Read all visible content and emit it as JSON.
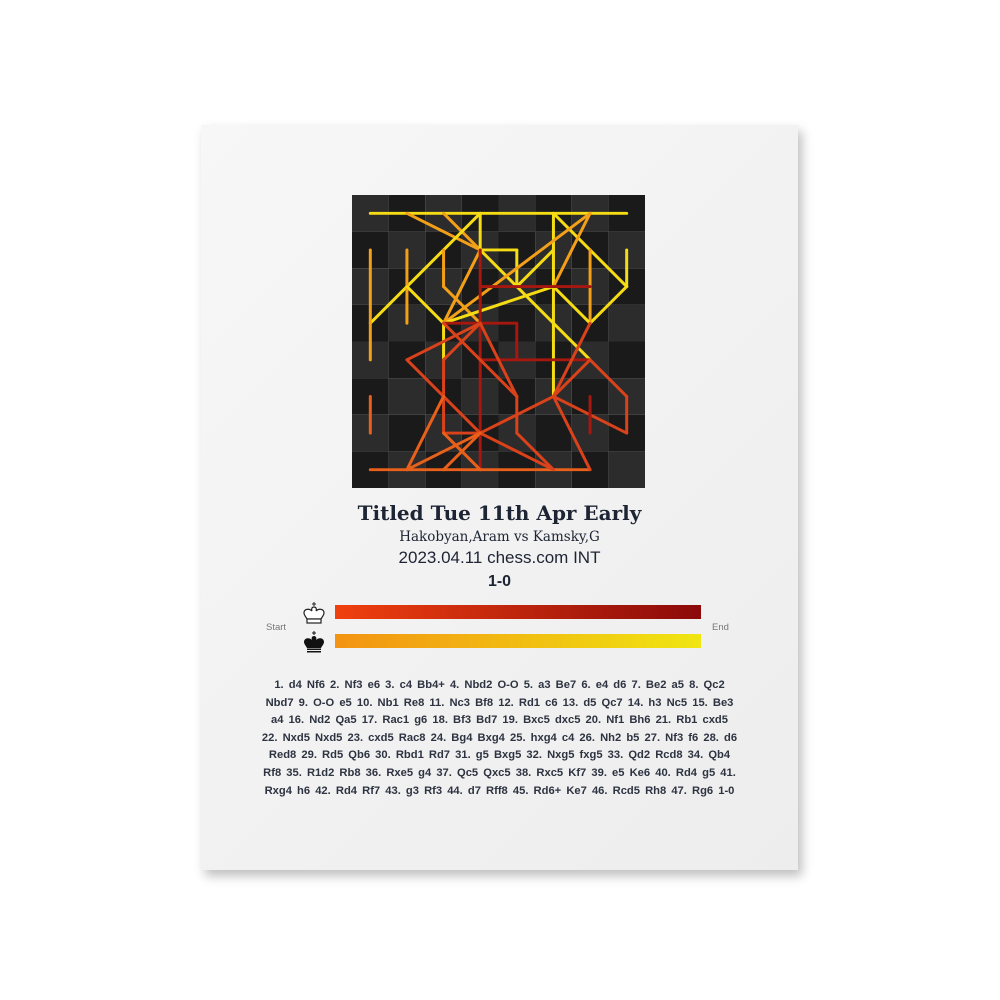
{
  "game": {
    "event": "Titled Tue 11th Apr Early",
    "players": "Hakobyan,Aram vs Kamsky,G",
    "date_site": "2023.04.11 chess.com INT",
    "result": "1-0"
  },
  "legend": {
    "start_label": "Start",
    "end_label": "End",
    "white_icon": "white-king-icon",
    "black_icon": "black-king-icon",
    "white_gradient": [
      "#f0400f",
      "#8b0a0a"
    ],
    "black_gradient": [
      "#f39312",
      "#efe612"
    ]
  },
  "moves_text": "1. d4 Nf6 2. Nf3 e6 3. c4 Bb4+ 4. Nbd2 O-O 5. a3 Be7 6. e4 d6 7. Be2 a5 8. Qc2 Nbd7 9. O-O e5 10. Nb1 Re8 11. Nc3 Bf8 12. Rd1 c6 13. d5 Qc7 14. h3 Nc5 15. Be3 a4 16. Nd2 Qa5 17. Rac1 g6 18. Bf3 Bd7 19. Bxc5 dxc5 20. Nf1 Bh6 21. Rb1 cxd5 22. Nxd5 Nxd5 23. cxd5 Rac8 24. Bg4 Bxg4 25. hxg4 c4 26. Nh2 b5 27. Nf3 f6 28. d6 Red8 29. Rd5 Qb6 30. Rbd1 Rd7 31. g5 Bxg5 32. Nxg5 fxg5 33. Qd2 Rcd8 34. Qb4 Rf8 35. R1d2 Rb8 36. Rxe5 g4 37. Qc5 Qxc5 38. Rxc5 Kf7 39. e5 Ke6 40. Rd4 g5 41. Rxg4 h6 42. Rd4 Rf7 43. g3 Rf3 44. d7 Rff8 45. Rd6+ Ke7 46. Rcd5 Rh8 47. Rg6 1-0"
}
